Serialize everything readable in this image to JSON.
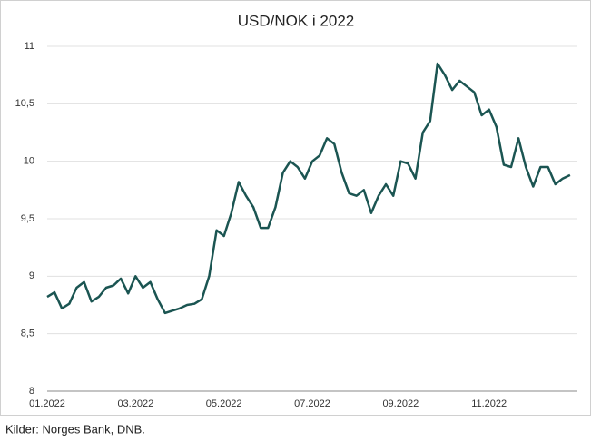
{
  "chart_data": {
    "type": "line",
    "title": "USD/NOK i 2022",
    "source": "Kilder: Norges Bank, DNB.",
    "categories": [
      "01.2022",
      null,
      null,
      null,
      null,
      null,
      null,
      null,
      null,
      null,
      null,
      null,
      "03.2022",
      null,
      null,
      null,
      null,
      null,
      null,
      null,
      null,
      null,
      null,
      null,
      "05.2022",
      null,
      null,
      null,
      null,
      null,
      null,
      null,
      null,
      null,
      null,
      null,
      "07.2022",
      null,
      null,
      null,
      null,
      null,
      null,
      null,
      null,
      null,
      null,
      null,
      "09.2022",
      null,
      null,
      null,
      null,
      null,
      null,
      null,
      null,
      null,
      null,
      null,
      "11.2022",
      null,
      null,
      null,
      null,
      null,
      null,
      null,
      null,
      null,
      null,
      null
    ],
    "series": [
      {
        "name": "USD/NOK",
        "color": "#1b5552",
        "values": [
          8.82,
          8.86,
          8.72,
          8.76,
          8.9,
          8.95,
          8.78,
          8.82,
          8.9,
          8.92,
          8.98,
          8.85,
          9.0,
          8.9,
          8.95,
          8.8,
          8.68,
          8.7,
          8.72,
          8.75,
          8.76,
          8.8,
          9.0,
          9.4,
          9.35,
          9.55,
          9.82,
          9.7,
          9.6,
          9.42,
          9.42,
          9.6,
          9.9,
          10.0,
          9.95,
          9.85,
          10.0,
          10.05,
          10.2,
          10.15,
          9.9,
          9.72,
          9.7,
          9.75,
          9.55,
          9.7,
          9.8,
          9.7,
          10.0,
          9.98,
          9.85,
          10.25,
          10.35,
          10.85,
          10.75,
          10.62,
          10.7,
          10.65,
          10.6,
          10.4,
          10.45,
          10.3,
          9.97,
          9.95,
          10.2,
          9.95,
          9.78,
          9.95,
          9.95,
          9.8,
          9.85,
          9.88
        ]
      }
    ],
    "ylim": [
      8,
      11
    ],
    "yticks": [
      8,
      {
        "value": 8.5,
        "label": "8,5"
      },
      9,
      {
        "value": 9.5,
        "label": "9,5"
      },
      10,
      {
        "value": 10.5,
        "label": "10,5"
      },
      11
    ],
    "grid": true
  }
}
